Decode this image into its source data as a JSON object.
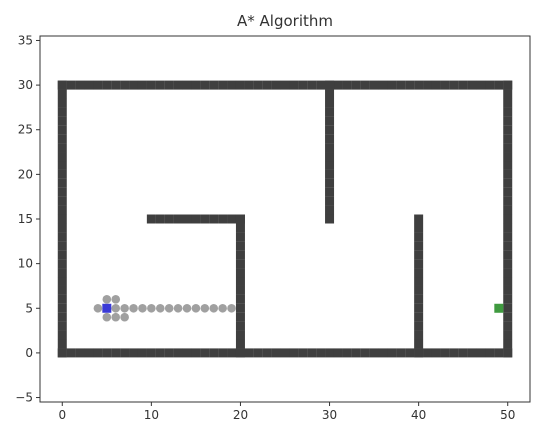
{
  "chart_data": {
    "type": "scatter",
    "title": "A* Algorithm",
    "xlabel": "",
    "ylabel": "",
    "xlim": [
      -2.5,
      52.5
    ],
    "ylim": [
      -5.5,
      35.5
    ],
    "xticks": [
      0,
      10,
      20,
      30,
      40,
      50
    ],
    "yticks": [
      -5,
      0,
      5,
      10,
      15,
      20,
      25,
      30,
      35
    ],
    "grid": false,
    "legend": "none",
    "colors": {
      "obstacle": "#3f3f3f",
      "explored": "#a0a0a0",
      "start": "#3a3ad6",
      "goal": "#3f9a3f"
    },
    "obstacle_segments": [
      {
        "x": [
          0,
          50
        ],
        "y": [
          0,
          0
        ]
      },
      {
        "x": [
          0,
          50
        ],
        "y": [
          30,
          30
        ]
      },
      {
        "x": [
          0,
          0
        ],
        "y": [
          0,
          30
        ]
      },
      {
        "x": [
          50,
          50
        ],
        "y": [
          0,
          30
        ]
      },
      {
        "x": [
          10,
          20
        ],
        "y": [
          15,
          15
        ]
      },
      {
        "x": [
          20,
          20
        ],
        "y": [
          0,
          15
        ]
      },
      {
        "x": [
          30,
          30
        ],
        "y": [
          15,
          30
        ]
      },
      {
        "x": [
          40,
          40
        ],
        "y": [
          0,
          15
        ]
      }
    ],
    "explored": [
      {
        "x": 4,
        "y": 5
      },
      {
        "x": 5,
        "y": 6
      },
      {
        "x": 6,
        "y": 6
      },
      {
        "x": 5,
        "y": 4
      },
      {
        "x": 6,
        "y": 4
      },
      {
        "x": 7,
        "y": 4
      },
      {
        "x": 6,
        "y": 5
      },
      {
        "x": 7,
        "y": 5
      },
      {
        "x": 8,
        "y": 5
      },
      {
        "x": 9,
        "y": 5
      },
      {
        "x": 10,
        "y": 5
      },
      {
        "x": 11,
        "y": 5
      },
      {
        "x": 12,
        "y": 5
      },
      {
        "x": 13,
        "y": 5
      },
      {
        "x": 14,
        "y": 5
      },
      {
        "x": 15,
        "y": 5
      },
      {
        "x": 16,
        "y": 5
      },
      {
        "x": 17,
        "y": 5
      },
      {
        "x": 18,
        "y": 5
      },
      {
        "x": 19,
        "y": 5
      }
    ],
    "start": {
      "x": 5,
      "y": 5
    },
    "goal": {
      "x": 49,
      "y": 5
    }
  }
}
